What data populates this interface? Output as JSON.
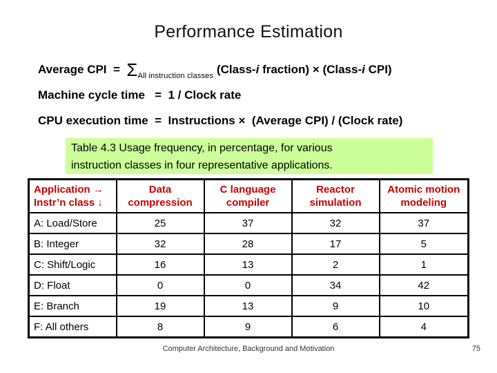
{
  "slide": {
    "title": "Performance Estimation",
    "footer": "Computer Architecture, Background and Motivation",
    "page_number": "75"
  },
  "formulas": {
    "avg_cpi": {
      "lhs": "Average CPI  =  ",
      "sigma": "Σ",
      "sigma_sub": "All instruction classes",
      "seg1": " (Class-",
      "i1": "i",
      "seg2": " fraction) × (Class-",
      "i2": "i",
      "seg3": " CPI)"
    },
    "machine_cycle": "Machine cycle time   =  1 / Clock rate",
    "cpu_time": "CPU execution time  =  Instructions ×  (Average CPI) / (Clock rate)"
  },
  "caption": {
    "text": "Table 4.3    Usage frequency, in percentage, for various\ninstruction classes in four representative applications.",
    "bg_color": "#CCFF99"
  },
  "table": {
    "header_text_color": "#CC0000",
    "corner": "Application →\nInstr’n class ↓",
    "columns": [
      "Data\ncompression",
      "C language\ncompiler",
      "Reactor\nsimulation",
      "Atomic motion\nmodeling"
    ],
    "rows": [
      {
        "label": "A: Load/Store",
        "values": [
          "25",
          "37",
          "32",
          "37"
        ]
      },
      {
        "label": "B: Integer",
        "values": [
          "32",
          "28",
          "17",
          "5"
        ]
      },
      {
        "label": "C: Shift/Logic",
        "values": [
          "16",
          "13",
          "2",
          "1"
        ]
      },
      {
        "label": "D: Float",
        "values": [
          "0",
          "0",
          "34",
          "42"
        ]
      },
      {
        "label": "E: Branch",
        "values": [
          "19",
          "13",
          "9",
          "10"
        ]
      },
      {
        "label": "F: All others",
        "values": [
          "8",
          "9",
          "6",
          "4"
        ]
      }
    ]
  }
}
